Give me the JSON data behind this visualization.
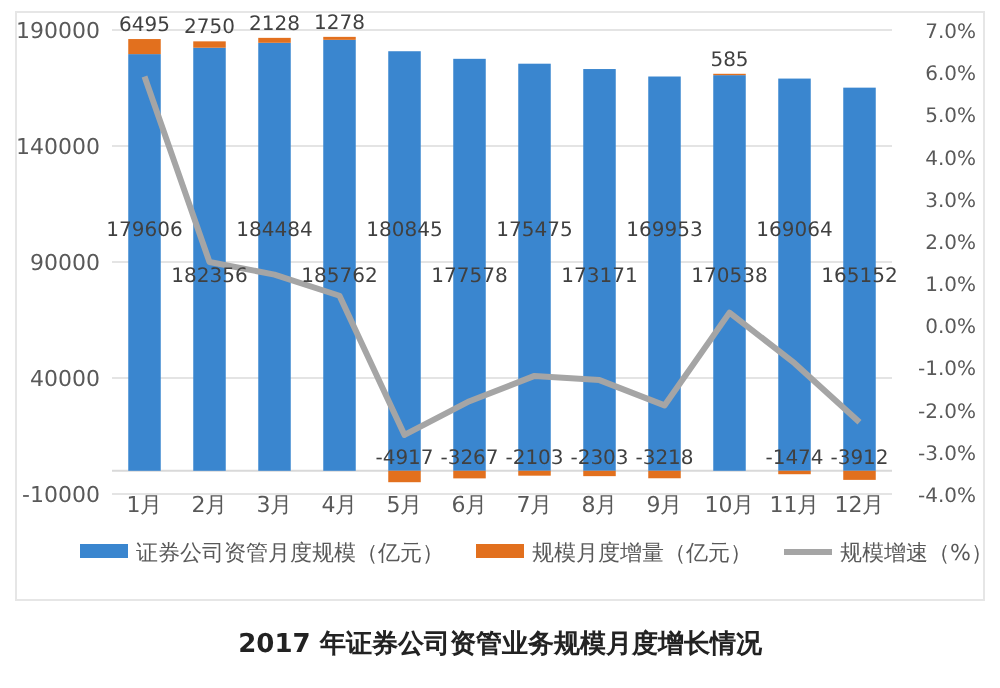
{
  "chart_data": {
    "type": "bar",
    "stacked": true,
    "title": "2017 年证券公司资管业务规模月度增长情况",
    "categories": [
      "1月",
      "2月",
      "3月",
      "4月",
      "5月",
      "6月",
      "7月",
      "8月",
      "9月",
      "10月",
      "11月",
      "12月"
    ],
    "series": [
      {
        "name": "证券公司资管月度规模（亿元）",
        "color": "#3a86cf",
        "values": [
          179606,
          182356,
          184484,
          185762,
          180845,
          177578,
          175475,
          173171,
          169953,
          170538,
          169064,
          165152
        ],
        "value_labels": [
          "179606",
          "182356",
          "184484",
          "185762",
          "180845",
          "177578",
          "175475",
          "173171",
          "169953",
          "170538",
          "169064",
          "165152"
        ]
      },
      {
        "name": "规模月度增量（亿元）",
        "color": "#e2701e",
        "values": [
          6495,
          2750,
          2128,
          1278,
          -4917,
          -3267,
          -2103,
          -2303,
          -3218,
          585,
          -1474,
          -3912
        ],
        "value_labels": [
          "6495",
          "2750",
          "2128",
          "1278",
          "-4917",
          "-3267",
          "-2103",
          "-2303",
          "-3218",
          "585",
          "-1474",
          "-3912"
        ]
      },
      {
        "name": "规模增速（%）",
        "type": "line",
        "axis": "y2",
        "color": "#a5a5a5",
        "marker": "none",
        "values": [
          5.9,
          1.5,
          1.2,
          0.7,
          -2.6,
          -1.8,
          -1.2,
          -1.3,
          -1.9,
          0.3,
          -0.9,
          -2.3
        ]
      }
    ],
    "ylim": [
      -10000,
      190000
    ],
    "yticks": [
      -10000,
      40000,
      90000,
      140000,
      190000
    ],
    "y2lim": [
      -4,
      7
    ],
    "y2ticks": [
      {
        "value": -4,
        "label": "-4.0%"
      },
      {
        "value": -3,
        "label": "-3.0%"
      },
      {
        "value": -2,
        "label": "-2.0%"
      },
      {
        "value": -1,
        "label": "-1.0%"
      },
      {
        "value": 0,
        "label": "0.0%"
      },
      {
        "value": 1,
        "label": "1.0%"
      },
      {
        "value": 2,
        "label": "2.0%"
      },
      {
        "value": 3,
        "label": "3.0%"
      },
      {
        "value": 4,
        "label": "4.0%"
      },
      {
        "value": 5,
        "label": "5.0%"
      },
      {
        "value": 6,
        "label": "6.0%"
      },
      {
        "value": 7,
        "label": "7.0%"
      }
    ],
    "grid": "y",
    "legend": "bottom"
  }
}
